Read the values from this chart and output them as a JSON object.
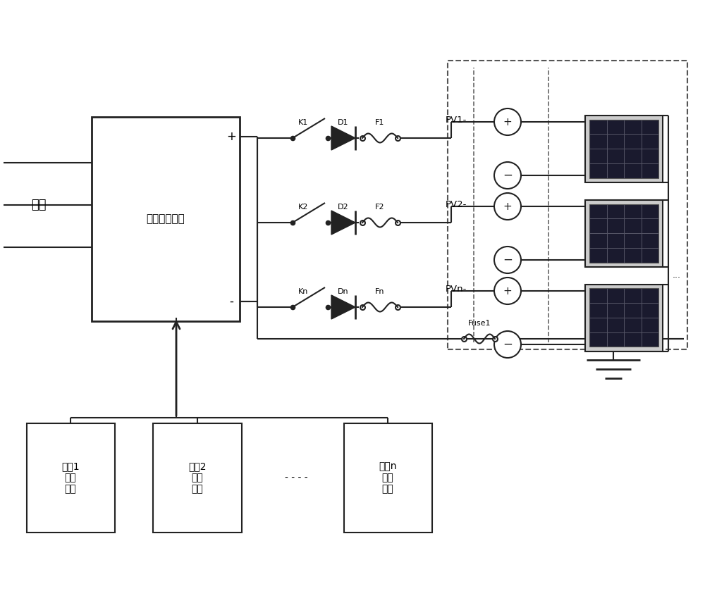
{
  "line_color": "#222222",
  "grid_label": "电网",
  "psu_label": "高频开关电源",
  "switches": [
    "K1",
    "K2",
    "Kn"
  ],
  "diodes": [
    "D1",
    "D2",
    "Dn"
  ],
  "fuses": [
    "F1",
    "F2",
    "Fn"
  ],
  "pv_labels": [
    "PV1-",
    "PV2-",
    "PVn-"
  ],
  "battery_labels": [
    "电池1\n电压\n采样",
    "电池2\n电压\n采样",
    "电池n\n电压\n采样"
  ],
  "fuse_bottom_label": "Fuse1",
  "plus_label": "+",
  "minus_label": "-"
}
